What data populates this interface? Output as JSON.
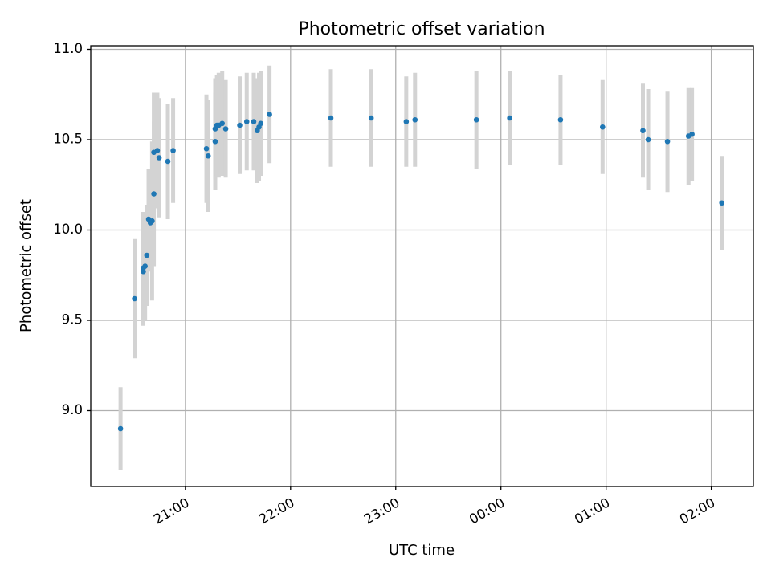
{
  "chart_data": {
    "type": "scatter",
    "title": "Photometric offset variation",
    "xlabel": "UTC time",
    "ylabel": "Photometric offset",
    "xlim": [
      "20:06",
      "02:24 (+1 day)"
    ],
    "ylim": [
      8.58,
      11.02
    ],
    "x_ticks": [
      "21:00",
      "22:00",
      "23:00",
      "00:00",
      "01:00",
      "02:00"
    ],
    "y_ticks": [
      "9.0",
      "9.5",
      "10.0",
      "10.5",
      "11.0"
    ],
    "grid": true,
    "marker_color": "#1f77b4",
    "errorbar_color": "#d3d3d3",
    "series": [
      {
        "x": [
          "20:23",
          "20:31",
          "20:36",
          "20:36",
          "20:37",
          "20:38",
          "20:39",
          "20:40",
          "20:41",
          "20:42",
          "20:42",
          "20:44",
          "20:45",
          "20:50",
          "20:53",
          "21:12",
          "21:13",
          "21:17",
          "21:17",
          "21:18",
          "21:19",
          "21:21",
          "21:23",
          "21:31",
          "21:35",
          "21:39",
          "21:41",
          "21:42",
          "21:43",
          "21:48",
          "22:23",
          "22:46",
          "23:06",
          "23:11",
          "23:46",
          "00:05",
          "00:34",
          "00:58",
          "01:21",
          "01:24",
          "01:35",
          "01:47",
          "01:49",
          "02:06"
        ],
        "y": [
          8.9,
          9.62,
          9.79,
          9.77,
          9.8,
          9.86,
          10.06,
          10.04,
          10.05,
          10.2,
          10.43,
          10.44,
          10.4,
          10.38,
          10.44,
          10.45,
          10.41,
          10.49,
          10.56,
          10.58,
          10.58,
          10.59,
          10.56,
          10.58,
          10.6,
          10.6,
          10.55,
          10.57,
          10.59,
          10.64,
          10.62,
          10.62,
          10.6,
          10.61,
          10.61,
          10.62,
          10.61,
          10.57,
          10.55,
          10.5,
          10.49,
          10.52,
          10.53,
          10.15
        ],
        "yerr": [
          0.23,
          0.33,
          0.31,
          0.3,
          0.3,
          0.28,
          0.28,
          0.27,
          0.44,
          0.4,
          0.33,
          0.32,
          0.33,
          0.32,
          0.29,
          0.3,
          0.31,
          0.27,
          0.28,
          0.28,
          0.29,
          0.29,
          0.27,
          0.27,
          0.27,
          0.27,
          0.29,
          0.3,
          0.29,
          0.27,
          0.27,
          0.27,
          0.25,
          0.26,
          0.27,
          0.26,
          0.25,
          0.26,
          0.26,
          0.28,
          0.28,
          0.27,
          0.26,
          0.26
        ]
      }
    ]
  }
}
